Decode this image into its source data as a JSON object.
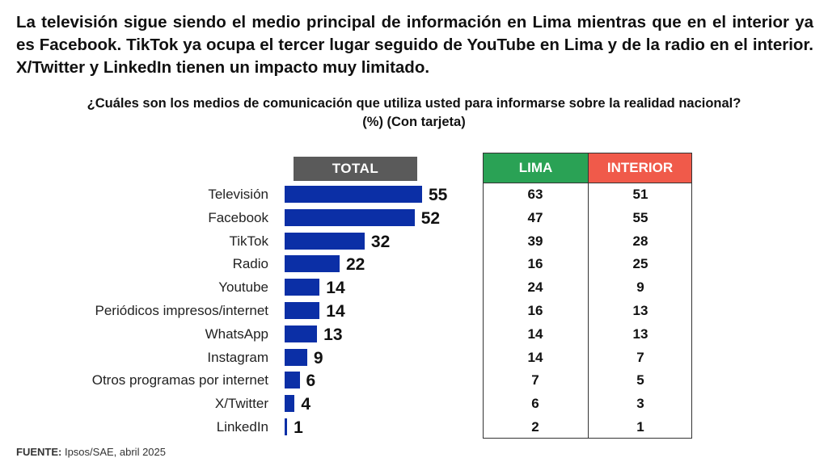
{
  "headline": "La televisión sigue siendo el medio principal de información en Lima mientras que en el interior ya es Facebook.  TikTok ya ocupa el tercer lugar seguido de YouTube en Lima y de la radio en el interior. X/Twitter y LinkedIn tienen un impacto muy limitado.",
  "question": "¿Cuáles son los medios de comunicación que utiliza usted para informarse sobre la realidad nacional?",
  "question_sub": "(%) (Con tarjeta)",
  "source_label": "FUENTE:",
  "source_text": "Ipsos/SAE, abril 2025",
  "colors": {
    "bar": "#0b2fa6",
    "total_header": "#5a5a5a",
    "lima_header": "#2aa255",
    "interior_header": "#f05a4a"
  },
  "chart_data": {
    "type": "bar",
    "orientation": "horizontal",
    "categories": [
      "Televisión",
      "Facebook",
      "TikTok",
      "Radio",
      "Youtube",
      "Periódicos impresos/internet",
      "WhatsApp",
      "Instagram",
      "Otros programas por internet",
      "X/Twitter",
      "LinkedIn"
    ],
    "series": [
      {
        "name": "TOTAL",
        "values": [
          55,
          52,
          32,
          22,
          14,
          14,
          13,
          9,
          6,
          4,
          1
        ]
      }
    ],
    "table": {
      "columns": [
        "LIMA",
        "INTERIOR"
      ],
      "lima": [
        63,
        47,
        39,
        16,
        24,
        16,
        14,
        14,
        7,
        6,
        2
      ],
      "interior": [
        51,
        55,
        28,
        25,
        9,
        13,
        13,
        7,
        5,
        3,
        1
      ]
    }
  }
}
